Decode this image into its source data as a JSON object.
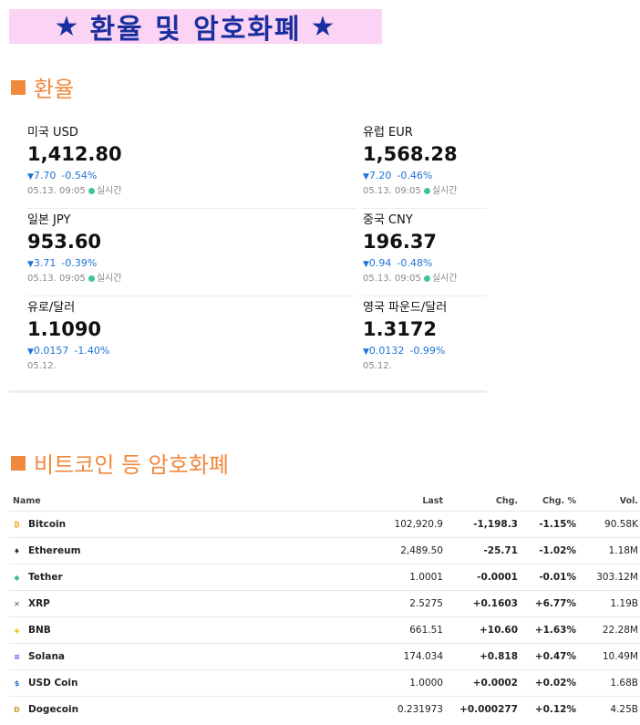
{
  "banner": {
    "star": "★",
    "title": "환율 및 암호화폐"
  },
  "fx_section": {
    "title": "환율"
  },
  "crypto_section": {
    "title": "비트코인 등 암호화폐"
  },
  "fx": [
    {
      "name": "미국 USD",
      "value": "1,412.80",
      "change": "7.70",
      "pct": "-0.54%",
      "time": "05.13. 09:05",
      "live": "실시간"
    },
    {
      "name": "유럽 EUR",
      "value": "1,568.28",
      "change": "7.20",
      "pct": "-0.46%",
      "time": "05.13. 09:05",
      "live": "실시간"
    },
    {
      "name": "일본 JPY",
      "value": "953.60",
      "change": "3.71",
      "pct": "-0.39%",
      "time": "05.13. 09:05",
      "live": "실시간"
    },
    {
      "name": "중국 CNY",
      "value": "196.37",
      "change": "0.94",
      "pct": "-0.48%",
      "time": "05.13. 09:05",
      "live": "실시간"
    },
    {
      "name": "유로/달러",
      "value": "1.1090",
      "change": "0.0157",
      "pct": "-1.40%",
      "time": "05.12.",
      "live": ""
    },
    {
      "name": "영국 파운드/달러",
      "value": "1.3172",
      "change": "0.0132",
      "pct": "-0.99%",
      "time": "05.12.",
      "live": ""
    }
  ],
  "down_arrow": "▼",
  "crypto": {
    "headers": {
      "name": "Name",
      "last": "Last",
      "chg": "Chg.",
      "chg_pct": "Chg. %",
      "vol": "Vol."
    },
    "rows": [
      {
        "name": "Bitcoin",
        "icon": "bitcoin-icon",
        "icon_glyph": "₿",
        "icon_color": "#f7a21b",
        "last": "102,920.9",
        "chg": "-1,198.3",
        "pct": "-1.15%",
        "vol": "90.58K",
        "dir": "neg"
      },
      {
        "name": "Ethereum",
        "icon": "ethereum-icon",
        "icon_glyph": "♦",
        "icon_color": "#333333",
        "last": "2,489.50",
        "chg": "-25.71",
        "pct": "-1.02%",
        "vol": "1.18M",
        "dir": "neg"
      },
      {
        "name": "Tether",
        "icon": "tether-icon",
        "icon_glyph": "◆",
        "icon_color": "#3fb59a",
        "last": "1.0001",
        "chg": "-0.0001",
        "pct": "-0.01%",
        "vol": "303.12M",
        "dir": "neg"
      },
      {
        "name": "XRP",
        "icon": "xrp-icon",
        "icon_glyph": "✕",
        "icon_color": "#555555",
        "last": "2.5275",
        "chg": "+0.1603",
        "pct": "+6.77%",
        "vol": "1.19B",
        "dir": "pos"
      },
      {
        "name": "BNB",
        "icon": "bnb-icon",
        "icon_glyph": "◈",
        "icon_color": "#f0b90b",
        "last": "661.51",
        "chg": "+10.60",
        "pct": "+1.63%",
        "vol": "22.28M",
        "dir": "pos"
      },
      {
        "name": "Solana",
        "icon": "solana-icon",
        "icon_glyph": "≡",
        "icon_color": "#6b5df0",
        "last": "174.034",
        "chg": "+0.818",
        "pct": "+0.47%",
        "vol": "10.49M",
        "dir": "pos"
      },
      {
        "name": "USD Coin",
        "icon": "usd-coin-icon",
        "icon_glyph": "$",
        "icon_color": "#2775ca",
        "last": "1.0000",
        "chg": "+0.0002",
        "pct": "+0.02%",
        "vol": "1.68B",
        "dir": "pos"
      },
      {
        "name": "Dogecoin",
        "icon": "dogecoin-icon",
        "icon_glyph": "Đ",
        "icon_color": "#c2a633",
        "last": "0.231973",
        "chg": "+0.000277",
        "pct": "+0.12%",
        "vol": "4.25B",
        "dir": "pos"
      }
    ]
  }
}
